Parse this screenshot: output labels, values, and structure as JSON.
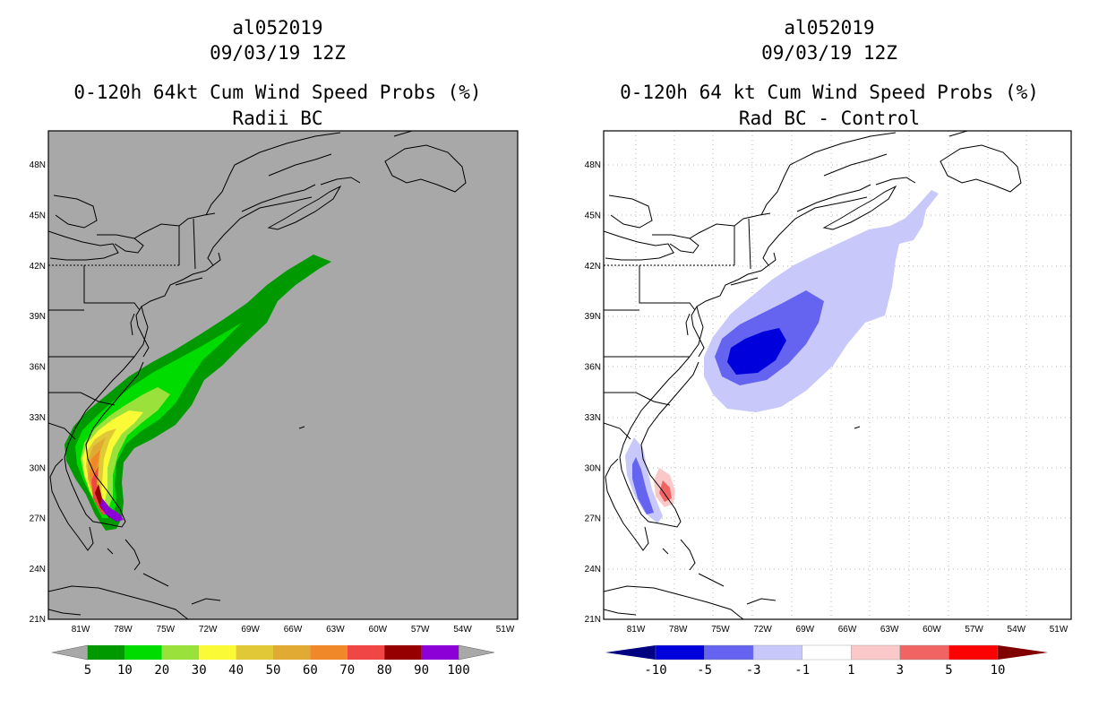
{
  "left": {
    "storm_id": "al052019",
    "date": "09/03/19 12Z",
    "product": "0-120h 64kt Cum Wind Speed Probs (%)",
    "subtitle": "Radii BC",
    "background": "#a8a8a8",
    "lat_labels": [
      "48N",
      "45N",
      "42N",
      "39N",
      "36N",
      "33N",
      "30N",
      "27N",
      "24N",
      "21N"
    ],
    "lon_labels": [
      "81W",
      "78W",
      "75W",
      "72W",
      "69W",
      "66W",
      "63W",
      "60W",
      "57W",
      "54W",
      "51W"
    ],
    "colorbar": {
      "ticks": [
        "5",
        "10",
        "20",
        "30",
        "40",
        "50",
        "60",
        "70",
        "80",
        "90",
        "100"
      ],
      "colors": [
        "#009a00",
        "#00dc00",
        "#9be13c",
        "#fafa37",
        "#e1c837",
        "#e1aa32",
        "#f08728",
        "#f04646",
        "#960000",
        "#8c00d7"
      ],
      "end_color": "#a8a8a8"
    }
  },
  "right": {
    "storm_id": "al052019",
    "date": "09/03/19 12Z",
    "product": "0-120h 64 kt Cum Wind Speed Probs (%)",
    "subtitle": "Rad BC - Control",
    "background": "#ffffff",
    "lat_labels": [
      "48N",
      "45N",
      "42N",
      "39N",
      "36N",
      "33N",
      "30N",
      "27N",
      "24N",
      "21N"
    ],
    "lon_labels": [
      "81W",
      "78W",
      "75W",
      "72W",
      "69W",
      "66W",
      "63W",
      "60W",
      "57W",
      "54W",
      "51W"
    ],
    "colorbar": {
      "ticks": [
        "-10",
        "-5",
        "-3",
        "-1",
        "1",
        "3",
        "5",
        "10"
      ],
      "colors": [
        "#0000dc",
        "#6464f0",
        "#c8c8fa",
        "#ffffff",
        "#fac8c8",
        "#f06464",
        "#ff0000"
      ],
      "low_color": "#000080",
      "high_color": "#800000"
    }
  }
}
